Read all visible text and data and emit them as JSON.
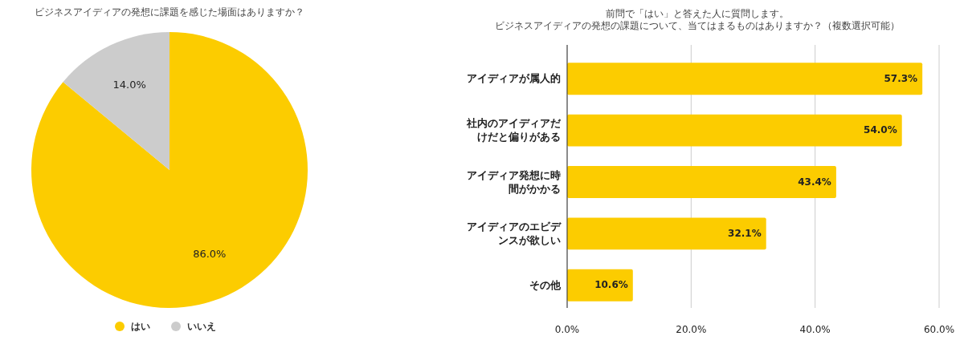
{
  "chart_data": [
    {
      "type": "pie",
      "title": "ビジネスアイディアの発想に課題を感じた場面はありますか？",
      "categories": [
        "はい",
        "いいえ"
      ],
      "values": [
        86.0,
        14.0
      ],
      "colors": [
        "#fccc00",
        "#cccccc"
      ],
      "value_labels": [
        "86.0%",
        "14.0%"
      ],
      "legend": "bottom"
    },
    {
      "type": "bar",
      "orientation": "horizontal",
      "title": "前問で「はい」と答えた人に質問します。ビジネスアイディアの発想の課題について、当てはまるものはありますか？（複数選択可能）",
      "categories": [
        "アイディアが属人的",
        "社内のアイディアだけだと偏りがある",
        "アイディア発想に時間がかかる",
        "アイディアのエビデンスが欲しい",
        "その他"
      ],
      "values": [
        57.3,
        54.0,
        43.4,
        32.1,
        10.6
      ],
      "color": "#fccc00",
      "value_labels": [
        "57.3%",
        "54.0%",
        "43.4%",
        "32.1%",
        "10.6%"
      ],
      "xlim": [
        0,
        60
      ],
      "xticks": [
        {
          "value": 0,
          "label": "0.0%"
        },
        {
          "value": 20,
          "label": "20.0%"
        },
        {
          "value": 40,
          "label": "40.0%"
        },
        {
          "value": 60,
          "label": "60.0%"
        }
      ],
      "grid": "x"
    }
  ]
}
